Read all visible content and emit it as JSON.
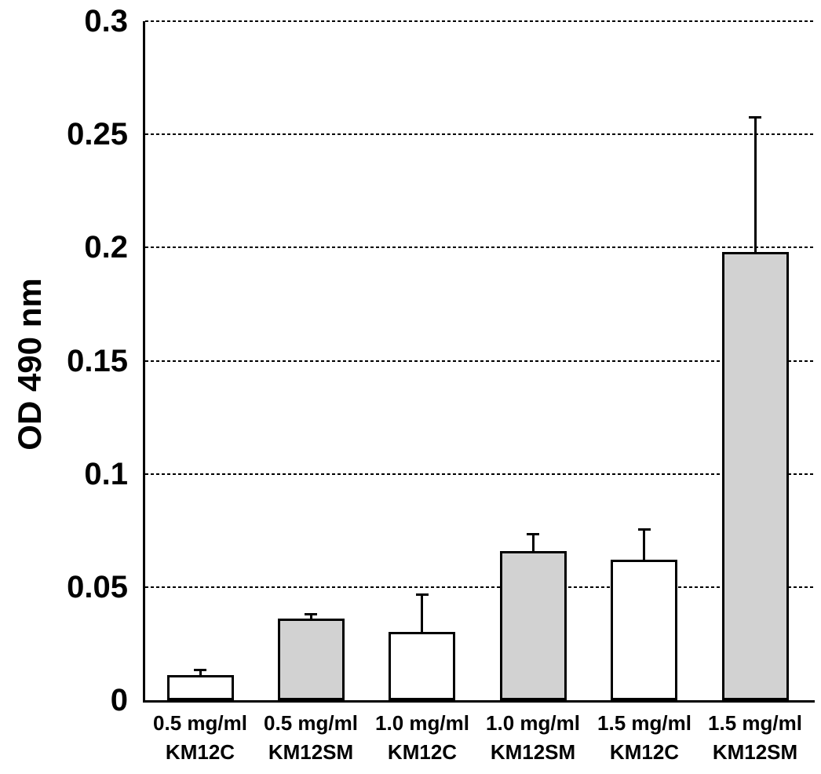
{
  "chart_data": {
    "type": "bar",
    "title": "",
    "xlabel": "",
    "ylabel": "OD 490 nm",
    "ylim": [
      0,
      0.3
    ],
    "yticks": [
      0,
      0.05,
      0.1,
      0.15,
      0.2,
      0.25,
      0.3
    ],
    "ytick_labels": [
      "0",
      "0.05",
      "0.1",
      "0.15",
      "0.2",
      "0.25",
      "0.3"
    ],
    "grid": "horizontal-dashed",
    "legend": "none",
    "categories": [
      "0.5 mg/ml KM12C",
      "0.5 mg/ml KM12SM",
      "1.0 mg/ml KM12C",
      "1.0 mg/ml KM12SM",
      "1.5 mg/ml KM12C",
      "1.5 mg/ml KM12SM"
    ],
    "bars": [
      {
        "label_line1": "0.5 mg/ml",
        "label_line2": "KM12C",
        "value": 0.011,
        "error": 0.003,
        "fill": "#ffffff"
      },
      {
        "label_line1": "0.5 mg/ml",
        "label_line2": "KM12SM",
        "value": 0.036,
        "error": 0.0025,
        "fill": "#d2d2d2"
      },
      {
        "label_line1": "1.0 mg/ml",
        "label_line2": "KM12C",
        "value": 0.03,
        "error": 0.017,
        "fill": "#ffffff"
      },
      {
        "label_line1": "1.0 mg/ml",
        "label_line2": "KM12SM",
        "value": 0.066,
        "error": 0.008,
        "fill": "#d2d2d2"
      },
      {
        "label_line1": "1.5 mg/ml",
        "label_line2": "KM12C",
        "value": 0.062,
        "error": 0.014,
        "fill": "#ffffff"
      },
      {
        "label_line1": "1.5 mg/ml",
        "label_line2": "KM12SM",
        "value": 0.198,
        "error": 0.06,
        "fill": "#d2d2d2"
      }
    ],
    "colors": {
      "bar_border": "#000000",
      "grid": "#000000",
      "axis": "#000000",
      "text": "#000000",
      "white_series_fill": "#ffffff",
      "gray_series_fill": "#d2d2d2"
    }
  }
}
